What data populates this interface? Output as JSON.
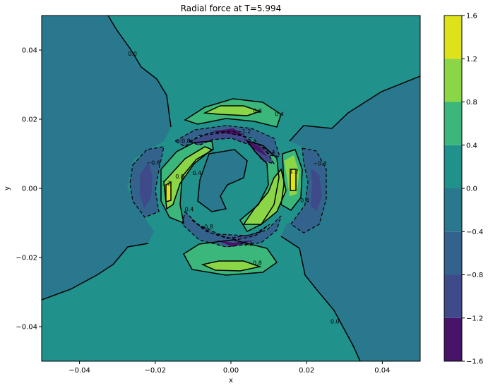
{
  "chart_data": {
    "type": "contourf",
    "title": "Radial force at T=5.994",
    "xlabel": "x",
    "ylabel": "y",
    "xlim": [
      -0.05,
      0.05
    ],
    "ylim": [
      -0.05,
      0.05
    ],
    "xticks": [
      -0.04,
      -0.02,
      0.0,
      0.02,
      0.04
    ],
    "yticks": [
      -0.04,
      -0.02,
      0.0,
      0.02,
      0.04
    ],
    "xtick_labels": [
      "−0.04",
      "−0.02",
      "0.00",
      "0.02",
      "0.04"
    ],
    "ytick_labels": [
      "−0.04",
      "−0.02",
      "0.00",
      "0.02",
      "0.04"
    ],
    "colorbar": {
      "levels": [
        -1.6,
        -1.2,
        -0.8,
        -0.4,
        0.0,
        0.4,
        0.8,
        1.2,
        1.6
      ],
      "tick_labels": [
        "−1.6",
        "−1.2",
        "−0.8",
        "−0.4",
        "0.0",
        "0.4",
        "0.8",
        "1.2",
        "1.6"
      ],
      "colors": [
        "#481467",
        "#3f4a8a",
        "#33638d",
        "#2a788e",
        "#21918c",
        "#3bb77b",
        "#8bd646",
        "#dde318"
      ]
    },
    "contour_labels": [
      {
        "text": "0.0",
        "x": -0.026,
        "y": 0.039
      },
      {
        "text": "0.8",
        "x": 0.007,
        "y": 0.0225
      },
      {
        "text": "0.4",
        "x": 0.0128,
        "y": 0.0215
      },
      {
        "text": "−0.8",
        "x": -0.0125,
        "y": 0.0138
      },
      {
        "text": "−1.2",
        "x": 0.0035,
        "y": 0.0165
      },
      {
        "text": "0.4",
        "x": 0.0105,
        "y": 0.0105
      },
      {
        "text": "−0.8",
        "x": -0.0205,
        "y": 0.0075
      },
      {
        "text": "−0.8",
        "x": 0.0235,
        "y": 0.0072
      },
      {
        "text": "1.2",
        "x": 0.0167,
        "y": 0.005
      },
      {
        "text": "1.2",
        "x": -0.017,
        "y": 0.0015
      },
      {
        "text": "0.8",
        "x": -0.0135,
        "y": 0.0035
      },
      {
        "text": "0.4",
        "x": -0.009,
        "y": 0.0045
      },
      {
        "text": "0.4",
        "x": 0.0195,
        "y": -0.0035
      },
      {
        "text": "0.4",
        "x": -0.011,
        "y": -0.006
      },
      {
        "text": "−0.8",
        "x": -0.0065,
        "y": -0.011
      },
      {
        "text": "−1.2",
        "x": 0.004,
        "y": -0.016
      },
      {
        "text": "0.8",
        "x": 0.007,
        "y": -0.0215
      },
      {
        "text": "0.0",
        "x": 0.0275,
        "y": -0.0385
      }
    ]
  }
}
